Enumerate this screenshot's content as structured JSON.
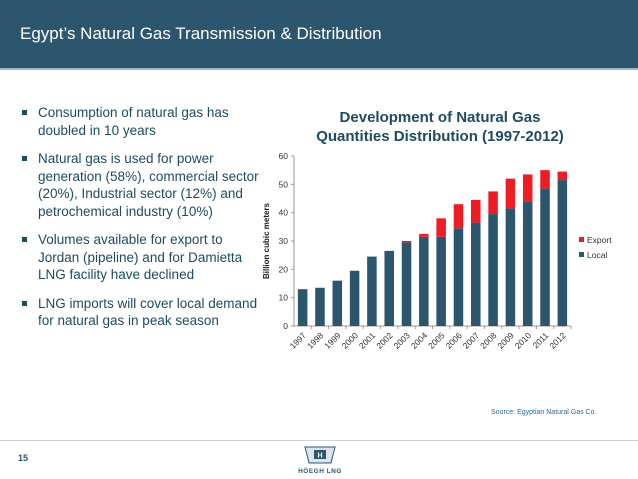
{
  "header": {
    "title": "Egypt’s Natural Gas Transmission & Distribution"
  },
  "bullets": [
    "Consumption of natural gas has doubled in 10 years",
    "Natural gas is used for power generation (58%), commercial sector (20%), Industrial sector (12%) and petrochemical industry (10%)",
    "Volumes available for export to Jordan (pipeline) and for Damietta LNG facility have declined",
    "LNG imports will cover local demand for natural gas in peak season"
  ],
  "chart_data": {
    "type": "bar",
    "stacked": true,
    "title_line1": "Development of Natural Gas",
    "title_line2": "Quantities Distribution (1997-2012)",
    "ylabel": "Billion cubic meters",
    "xlabel": "",
    "ylim": [
      0,
      60
    ],
    "yticks": [
      0,
      10,
      20,
      30,
      40,
      50,
      60
    ],
    "grid": false,
    "legend_position": "right",
    "categories": [
      "1997",
      "1998",
      "1999",
      "2000",
      "2001",
      "2002",
      "2003",
      "2004",
      "2005",
      "2006",
      "2007",
      "2008",
      "2009",
      "2010",
      "2011",
      "2012"
    ],
    "series": [
      {
        "name": "Local",
        "color": "#2b566e",
        "values": [
          13,
          13.5,
          16,
          19.5,
          24.5,
          26.5,
          29.5,
          31.5,
          31.5,
          34.5,
          36.5,
          39.5,
          41.5,
          44,
          48.5,
          51.5
        ]
      },
      {
        "name": "Export",
        "color": "#ee1c23",
        "values": [
          0,
          0,
          0,
          0,
          0,
          0,
          0.5,
          1,
          6.5,
          8.5,
          8,
          8,
          10.5,
          9.5,
          6.5,
          3
        ]
      }
    ]
  },
  "source": "Source: Egyptian Natural Gas Co.",
  "footer": {
    "page_number": "15",
    "logo_text": "HÖEGH LNG"
  },
  "colors": {
    "header": "#2b566e",
    "local": "#2b566e",
    "export": "#ee1c23"
  }
}
